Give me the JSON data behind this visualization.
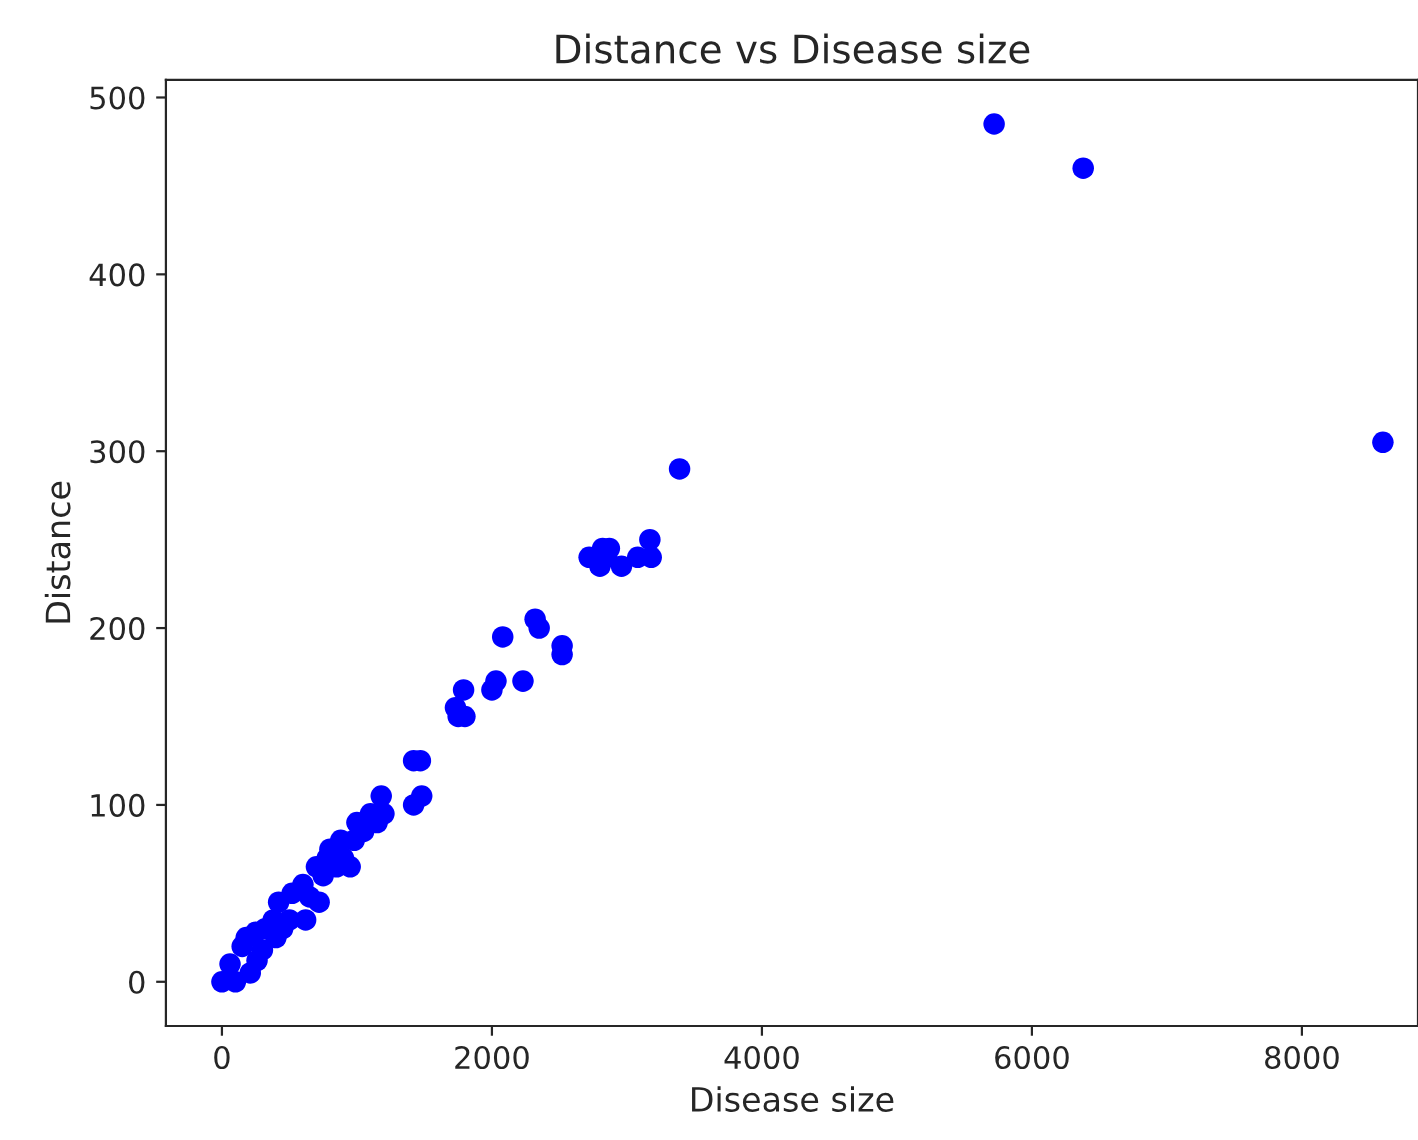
{
  "chart_data": {
    "type": "scatter",
    "title": "Distance vs Disease size",
    "xlabel": "Disease size",
    "ylabel": "Distance",
    "x": [
      0,
      60,
      100,
      150,
      180,
      210,
      250,
      260,
      300,
      320,
      380,
      400,
      420,
      450,
      500,
      520,
      600,
      620,
      650,
      700,
      720,
      750,
      780,
      800,
      850,
      880,
      900,
      950,
      980,
      1000,
      1050,
      1100,
      1150,
      1180,
      1200,
      1420,
      1470,
      1420,
      1480,
      1750,
      1800,
      1790,
      1730,
      2000,
      2030,
      2080,
      2230,
      2320,
      2350,
      2520,
      2520,
      2720,
      2800,
      2820,
      2870,
      2850,
      2960,
      3080,
      3170,
      3180,
      3390,
      5720,
      6380,
      8600
    ],
    "values": [
      0,
      10,
      0,
      20,
      25,
      5,
      28,
      12,
      18,
      30,
      35,
      25,
      45,
      30,
      35,
      50,
      55,
      35,
      48,
      65,
      45,
      60,
      70,
      75,
      65,
      80,
      70,
      65,
      80,
      90,
      85,
      95,
      90,
      105,
      95,
      125,
      125,
      100,
      105,
      150,
      150,
      165,
      155,
      165,
      170,
      195,
      170,
      205,
      200,
      190,
      185,
      240,
      235,
      245,
      245,
      240,
      235,
      240,
      250,
      240,
      290,
      485,
      460,
      305
    ],
    "color": "#0000ff",
    "marker": "circle",
    "xlim": [
      -415,
      8860
    ],
    "ylim": [
      -25,
      510
    ],
    "xticks": [
      0,
      2000,
      4000,
      6000,
      8000
    ],
    "yticks": [
      0,
      100,
      200,
      300,
      400,
      500
    ],
    "grid": false
  }
}
